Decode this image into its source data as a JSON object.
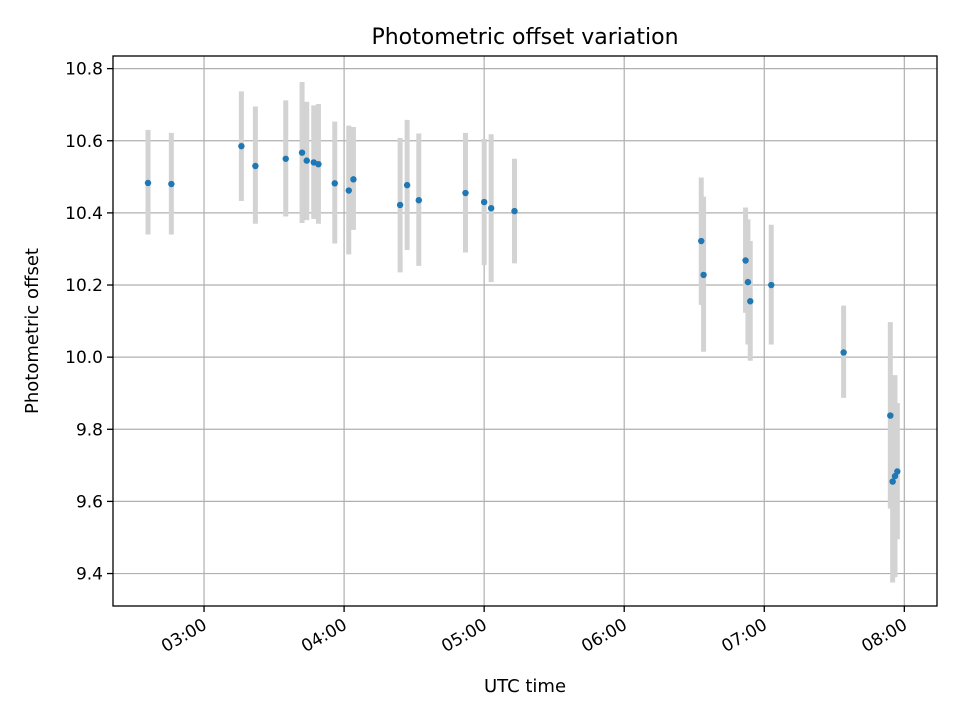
{
  "chart_data": {
    "type": "scatter",
    "title": "Photometric offset variation",
    "xlabel": "UTC time",
    "ylabel": "Photometric offset",
    "xlim": [
      "02:21",
      "08:14"
    ],
    "ylim": [
      9.31,
      10.835
    ],
    "grid": true,
    "x_ticks": [
      "03:00",
      "04:00",
      "05:00",
      "06:00",
      "07:00",
      "08:00"
    ],
    "y_ticks": [
      9.4,
      9.6,
      9.8,
      10.0,
      10.2,
      10.4,
      10.6,
      10.8
    ],
    "y_tick_labels": [
      "9.4",
      "9.6",
      "9.8",
      "10.0",
      "10.2",
      "10.4",
      "10.6",
      "10.8"
    ],
    "marker_color": "#1f77b4",
    "errorbar_color": "#d3d3d3",
    "points": [
      {
        "t": "02:36",
        "y": 10.483,
        "lo": 10.34,
        "hi": 10.63
      },
      {
        "t": "02:46",
        "y": 10.48,
        "lo": 10.34,
        "hi": 10.622
      },
      {
        "t": "03:16",
        "y": 10.585,
        "lo": 10.433,
        "hi": 10.737
      },
      {
        "t": "03:22",
        "y": 10.53,
        "lo": 10.37,
        "hi": 10.695
      },
      {
        "t": "03:35",
        "y": 10.55,
        "lo": 10.39,
        "hi": 10.712
      },
      {
        "t": "03:42",
        "y": 10.567,
        "lo": 10.372,
        "hi": 10.763
      },
      {
        "t": "03:44",
        "y": 10.545,
        "lo": 10.38,
        "hi": 10.708
      },
      {
        "t": "03:47",
        "y": 10.54,
        "lo": 10.383,
        "hi": 10.698
      },
      {
        "t": "03:49",
        "y": 10.535,
        "lo": 10.37,
        "hi": 10.702
      },
      {
        "t": "03:56",
        "y": 10.482,
        "lo": 10.315,
        "hi": 10.653
      },
      {
        "t": "04:02",
        "y": 10.462,
        "lo": 10.285,
        "hi": 10.642
      },
      {
        "t": "04:04",
        "y": 10.493,
        "lo": 10.353,
        "hi": 10.638
      },
      {
        "t": "04:24",
        "y": 10.422,
        "lo": 10.235,
        "hi": 10.608
      },
      {
        "t": "04:27",
        "y": 10.477,
        "lo": 10.297,
        "hi": 10.658
      },
      {
        "t": "04:32",
        "y": 10.435,
        "lo": 10.253,
        "hi": 10.62
      },
      {
        "t": "04:52",
        "y": 10.455,
        "lo": 10.29,
        "hi": 10.622
      },
      {
        "t": "05:00",
        "y": 10.43,
        "lo": 10.255,
        "hi": 10.605
      },
      {
        "t": "05:03",
        "y": 10.413,
        "lo": 10.208,
        "hi": 10.618
      },
      {
        "t": "05:13",
        "y": 10.405,
        "lo": 10.26,
        "hi": 10.55
      },
      {
        "t": "06:33",
        "y": 10.322,
        "lo": 10.145,
        "hi": 10.498
      },
      {
        "t": "06:34",
        "y": 10.228,
        "lo": 10.015,
        "hi": 10.445
      },
      {
        "t": "06:52",
        "y": 10.268,
        "lo": 10.123,
        "hi": 10.415
      },
      {
        "t": "06:53",
        "y": 10.208,
        "lo": 10.035,
        "hi": 10.382
      },
      {
        "t": "06:54",
        "y": 10.155,
        "lo": 9.99,
        "hi": 10.322
      },
      {
        "t": "07:03",
        "y": 10.2,
        "lo": 10.035,
        "hi": 10.367
      },
      {
        "t": "07:34",
        "y": 10.013,
        "lo": 9.887,
        "hi": 10.143
      },
      {
        "t": "07:54",
        "y": 9.838,
        "lo": 9.58,
        "hi": 10.097
      },
      {
        "t": "07:55",
        "y": 9.655,
        "lo": 9.375,
        "hi": 9.935
      },
      {
        "t": "07:56",
        "y": 9.67,
        "lo": 9.39,
        "hi": 9.95
      },
      {
        "t": "07:57",
        "y": 9.683,
        "lo": 9.495,
        "hi": 9.873
      }
    ]
  }
}
